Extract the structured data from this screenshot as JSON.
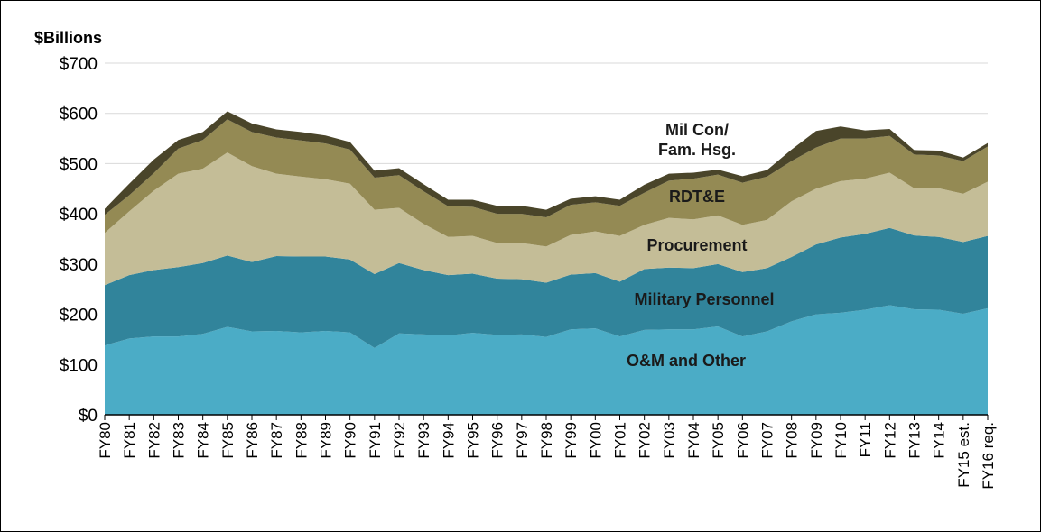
{
  "chart_data": {
    "type": "stacked_area",
    "y_axis_label": "$Billions",
    "categories": [
      "FY80",
      "FY81",
      "FY82",
      "FY83",
      "FY84",
      "FY85",
      "FY86",
      "FY87",
      "FY88",
      "FY89",
      "FY90",
      "FY91",
      "FY92",
      "FY93",
      "FY94",
      "FY95",
      "FY96",
      "FY97",
      "FY98",
      "FY99",
      "FY00",
      "FY01",
      "FY02",
      "FY03",
      "FY04",
      "FY05",
      "FY06",
      "FY07",
      "FY08",
      "FY09",
      "FY10",
      "FY11",
      "FY12",
      "FY13",
      "FY14",
      "FY15 est.",
      "FY16 req."
    ],
    "series": [
      {
        "name": "O&M and Other",
        "color": "#4bacc6",
        "values": [
          138,
          152,
          156,
          156,
          161,
          175,
          166,
          167,
          164,
          167,
          164,
          133,
          162,
          160,
          158,
          163,
          159,
          160,
          155,
          170,
          172,
          156,
          169,
          170,
          170,
          176,
          156,
          166,
          186,
          200,
          203,
          209,
          218,
          210,
          209,
          201,
          212
        ]
      },
      {
        "name": "Military Personnel",
        "color": "#31849b",
        "values": [
          120,
          126,
          132,
          138,
          141,
          142,
          138,
          149,
          151,
          148,
          145,
          147,
          140,
          128,
          120,
          118,
          112,
          110,
          108,
          109,
          110,
          109,
          121,
          123,
          122,
          124,
          128,
          126,
          128,
          139,
          150,
          151,
          154,
          147,
          145,
          143,
          144
        ]
      },
      {
        "name": "Procurement",
        "color": "#c4bd97",
        "values": [
          104,
          127,
          158,
          186,
          188,
          205,
          191,
          164,
          159,
          154,
          151,
          128,
          110,
          92,
          76,
          75,
          71,
          72,
          72,
          79,
          83,
          91,
          88,
          99,
          97,
          97,
          94,
          96,
          111,
          111,
          112,
          110,
          110,
          94,
          97,
          96,
          108
        ]
      },
      {
        "name": "RDT&E",
        "color": "#948a54",
        "values": [
          36,
          32,
          35,
          50,
          57,
          66,
          68,
          72,
          72,
          71,
          68,
          64,
          65,
          65,
          61,
          58,
          58,
          58,
          58,
          60,
          58,
          60,
          64,
          74,
          81,
          81,
          84,
          86,
          80,
          82,
          85,
          80,
          73,
          67,
          65,
          65,
          70
        ]
      },
      {
        "name": "Mil Con/ Fam. Hsg.",
        "color": "#4a452a",
        "values": [
          12,
          23,
          27,
          17,
          16,
          16,
          17,
          16,
          17,
          16,
          15,
          14,
          14,
          14,
          13,
          14,
          16,
          16,
          15,
          12,
          12,
          12,
          16,
          14,
          12,
          10,
          13,
          13,
          23,
          33,
          24,
          16,
          14,
          9,
          10,
          7,
          7
        ]
      }
    ],
    "ylim": [
      0,
      700
    ],
    "yticks": [
      {
        "value": 0,
        "label": "$0"
      },
      {
        "value": 100,
        "label": "$100"
      },
      {
        "value": 200,
        "label": "$200"
      },
      {
        "value": 300,
        "label": "$300"
      },
      {
        "value": 400,
        "label": "$400"
      },
      {
        "value": 500,
        "label": "$500"
      },
      {
        "value": 600,
        "label": "$600"
      },
      {
        "value": 700,
        "label": "$700"
      }
    ],
    "grid": true
  }
}
